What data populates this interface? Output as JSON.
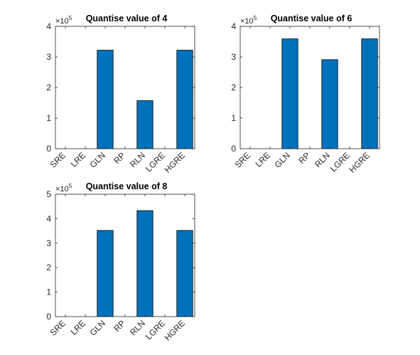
{
  "figure": {
    "background": "#ffffff"
  },
  "chart_data": [
    {
      "type": "bar",
      "title": "Quantise value of 4",
      "categories": [
        "SRE",
        "LRE",
        "GLN",
        "RP",
        "RLN",
        "LGRE",
        "HGRE"
      ],
      "values": [
        0,
        0,
        322000,
        0,
        157000,
        0,
        322000
      ],
      "ylim": [
        0,
        400000
      ],
      "yticks": [
        "0",
        "1",
        "2",
        "3",
        "4"
      ],
      "yexponent": {
        "base": "×10",
        "power": "5"
      },
      "bar_color": "#0072BD",
      "grid": false
    },
    {
      "type": "bar",
      "title": "Quantise value of 6",
      "categories": [
        "SRE",
        "LRE",
        "GLN",
        "RP",
        "RLN",
        "LGRE",
        "HGRE"
      ],
      "values": [
        0,
        0,
        359000,
        0,
        291000,
        0,
        359000
      ],
      "ylim": [
        0,
        400000
      ],
      "yticks": [
        "0",
        "1",
        "2",
        "3",
        "4"
      ],
      "yexponent": {
        "base": "×10",
        "power": "5"
      },
      "bar_color": "#0072BD",
      "grid": false
    },
    {
      "type": "bar",
      "title": "Quantise value of 8",
      "categories": [
        "SRE",
        "LRE",
        "GLN",
        "RP",
        "RLN",
        "LGRE",
        "HGRE"
      ],
      "values": [
        0,
        0,
        352000,
        0,
        433000,
        0,
        352000
      ],
      "ylim": [
        0,
        500000
      ],
      "yticks": [
        "0",
        "1",
        "2",
        "3",
        "4",
        "5"
      ],
      "yexponent": {
        "base": "×10",
        "power": "5"
      },
      "bar_color": "#0072BD",
      "grid": false
    }
  ]
}
